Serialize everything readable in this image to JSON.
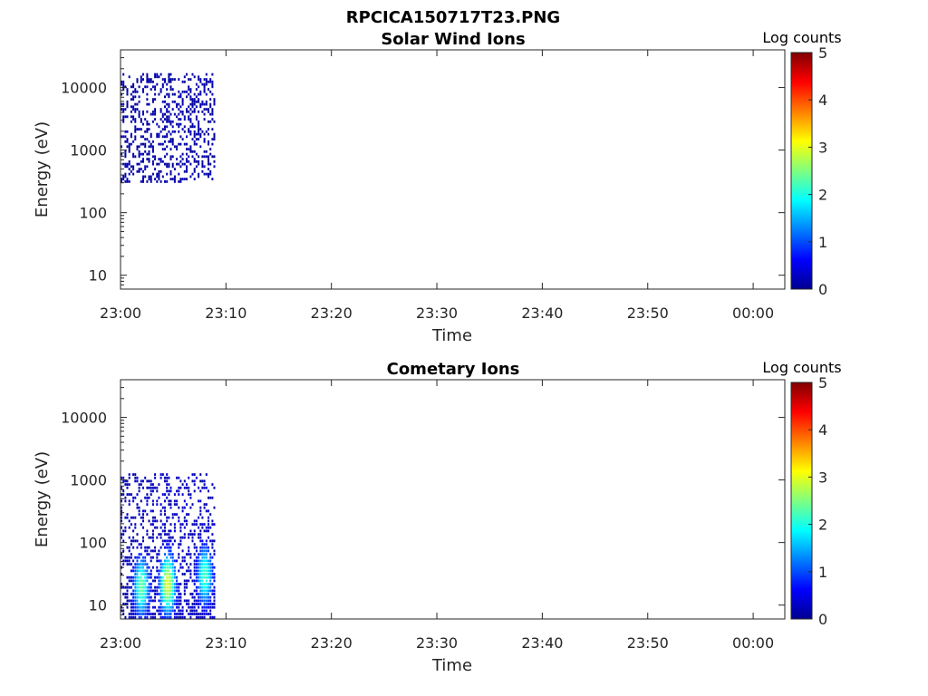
{
  "figure": {
    "title": "RPCICA150717T23.PNG"
  },
  "chart_data": [
    {
      "type": "heatmap",
      "title": "Solar Wind Ions",
      "xlabel": "Time",
      "ylabel": "Energy (eV)",
      "xlim": [
        "23:00",
        "00:03"
      ],
      "x_tick_labels": [
        "23:00",
        "23:10",
        "23:20",
        "23:30",
        "23:40",
        "23:50",
        "00:00"
      ],
      "ylim": [
        6,
        40000
      ],
      "yscale": "log",
      "y_tick_labels": [
        "10",
        "100",
        "1000",
        "10000"
      ],
      "colorbar": {
        "title": "Log counts",
        "range": [
          0,
          5
        ],
        "tick_labels": [
          "0",
          "1",
          "2",
          "3",
          "4",
          "5"
        ],
        "colormap": "jet"
      },
      "data_time_range": [
        "23:00",
        "23:09"
      ],
      "data_energy_range_eV": [
        300,
        17000
      ],
      "typical_log_counts": 0.2,
      "peaks": []
    },
    {
      "type": "heatmap",
      "title": "Cometary Ions",
      "xlabel": "Time",
      "ylabel": "Energy (eV)",
      "xlim": [
        "23:00",
        "00:03"
      ],
      "x_tick_labels": [
        "23:00",
        "23:10",
        "23:20",
        "23:30",
        "23:40",
        "23:50",
        "00:00"
      ],
      "ylim": [
        6,
        40000
      ],
      "yscale": "log",
      "y_tick_labels": [
        "10",
        "100",
        "1000",
        "10000"
      ],
      "colorbar": {
        "title": "Log counts",
        "range": [
          0,
          5
        ],
        "tick_labels": [
          "0",
          "1",
          "2",
          "3",
          "4",
          "5"
        ],
        "colormap": "jet"
      },
      "data_time_range": [
        "23:00",
        "23:09"
      ],
      "data_energy_range_eV": [
        6,
        1300
      ],
      "typical_log_counts": 0.3,
      "peaks": [
        {
          "time": "23:02",
          "energy_eV": 20,
          "log_counts": 2.4
        },
        {
          "time": "23:04.5",
          "energy_eV": 22,
          "log_counts": 3.0
        },
        {
          "time": "23:08",
          "energy_eV": 30,
          "log_counts": 2.2
        }
      ]
    }
  ]
}
